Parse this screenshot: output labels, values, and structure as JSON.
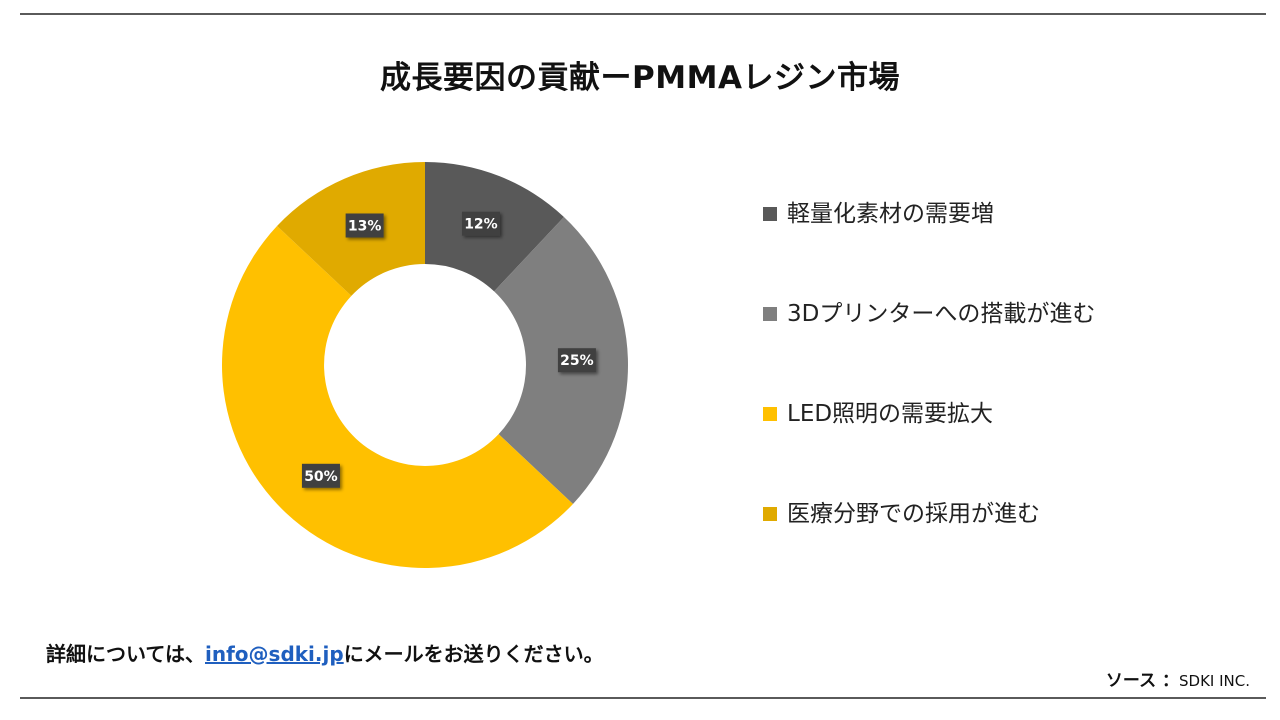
{
  "title": "成長要因の貢献ーPMMAレジン市場",
  "chart_data": {
    "type": "pie",
    "subtype": "donut",
    "slices": [
      {
        "label": "軽量化素材の需要増",
        "value": 12,
        "display": "12%",
        "color": "#595959"
      },
      {
        "label": "3Dプリンターへの搭載が進む",
        "value": 25,
        "display": "25%",
        "color": "#7f7f7f"
      },
      {
        "label": "LED照明の需要拡大",
        "value": 50,
        "display": "50%",
        "color": "#ffc000"
      },
      {
        "label": "医療分野での採用が進む",
        "value": 13,
        "display": "13%",
        "color": "#e0aa00"
      }
    ],
    "legend_position": "right",
    "start_angle": "12 o'clock, clockwise"
  },
  "footer": {
    "contact_prefix": "詳細については、",
    "contact_email": "info@sdki.jp",
    "contact_suffix": "にメールをお送りください。",
    "source_label": "ソース ：",
    "source_value": "SDKI INC."
  }
}
